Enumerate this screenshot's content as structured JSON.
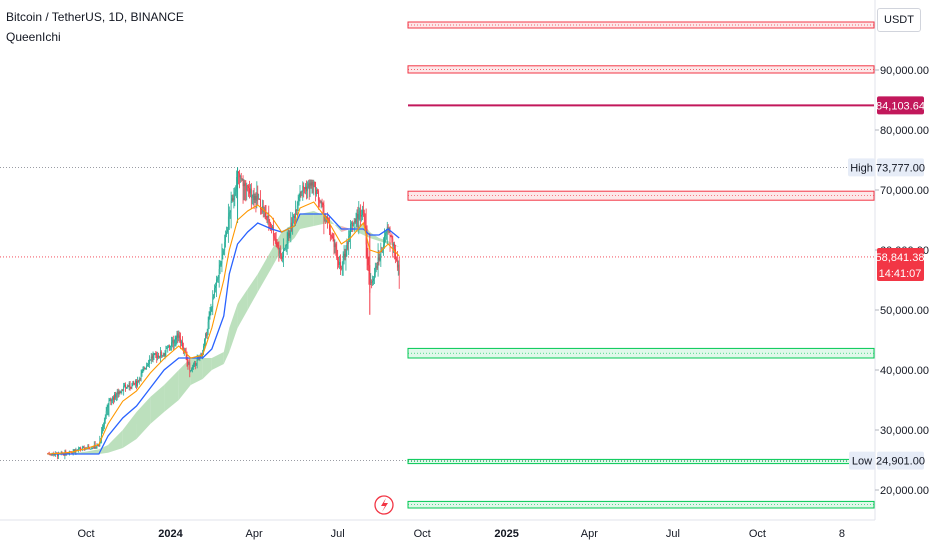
{
  "header": {
    "symbol_title": "Bitcoin / TetherUS, 1D, BINANCE",
    "indicator_name": "QueenIchi"
  },
  "currency_button": "USDT",
  "price_axis": {
    "ticks": [
      {
        "value": 90000,
        "label": "90,000.00"
      },
      {
        "value": 80000,
        "label": "80,000.00"
      },
      {
        "value": 70000,
        "label": "70,000.00"
      },
      {
        "value": 60000,
        "label": "60,000.00"
      },
      {
        "value": 50000,
        "label": "50,000.00"
      },
      {
        "value": 40000,
        "label": "40,000.00"
      },
      {
        "value": 30000,
        "label": "30,000.00"
      },
      {
        "value": 20000,
        "label": "20,000.00"
      }
    ]
  },
  "time_axis": {
    "ticks": [
      "Oct",
      "2024",
      "Apr",
      "Jul",
      "Oct",
      "2025",
      "Apr",
      "Jul",
      "Oct",
      "8"
    ]
  },
  "markers": {
    "high": {
      "tag": "High",
      "label": "73,777.00",
      "value": 73777
    },
    "low": {
      "tag": "Low",
      "label": "24,901.00",
      "value": 24901
    },
    "current": {
      "label": "58,841.38",
      "countdown": "14:41:07",
      "value": 58841.38
    },
    "target": {
      "label": "84,103.64",
      "value": 84103.64
    }
  },
  "colors": {
    "red": "#f23645",
    "dark_red": "#c2185b",
    "green": "#22ab94",
    "green_zone": "#00c853",
    "blue": "#2962ff",
    "orange": "#ff9800",
    "kumo_bull": "#a5d6a7",
    "kumo_bear": "#ef9a9a",
    "axis_text": "#131722"
  },
  "chart_data": {
    "type": "candlestick",
    "symbol": "Bitcoin / TetherUS",
    "interval": "1D",
    "exchange": "BINANCE",
    "ylim": [
      15000,
      99000
    ],
    "log_scale": false,
    "resistance_zones": [
      [
        97000,
        98000
      ],
      [
        89500,
        90700
      ],
      [
        68300,
        69800
      ]
    ],
    "support_zones": [
      [
        42000,
        43600
      ],
      [
        24400,
        25100
      ],
      [
        17000,
        18100
      ]
    ],
    "target_line": 84103.64,
    "high_line": 73777,
    "low_line": 24901,
    "current_line": 58841.38,
    "price_series": {
      "name": "",
      "x": [
        "2023-08-20",
        "2023-09-01",
        "2023-09-15",
        "2023-10-01",
        "2023-10-15",
        "2023-10-25",
        "2023-11-10",
        "2023-11-25",
        "2023-12-10",
        "2023-12-25",
        "2024-01-10",
        "2024-01-23",
        "2024-02-05",
        "2024-02-15",
        "2024-02-28",
        "2024-03-05",
        "2024-03-14",
        "2024-03-25",
        "2024-04-05",
        "2024-04-20",
        "2024-05-01",
        "2024-05-15",
        "2024-05-21",
        "2024-06-05",
        "2024-06-20",
        "2024-07-05",
        "2024-07-15",
        "2024-07-29",
        "2024-08-05",
        "2024-08-15",
        "2024-08-25",
        "2024-09-06"
      ],
      "close": [
        26100,
        25900,
        26500,
        27000,
        27300,
        34500,
        37000,
        37800,
        42000,
        42800,
        46000,
        39800,
        43000,
        51000,
        60000,
        66000,
        72500,
        70000,
        68500,
        64000,
        58500,
        66000,
        70000,
        71000,
        64500,
        56500,
        64000,
        67000,
        54000,
        58500,
        64000,
        56500
      ],
      "high": [
        26800,
        26400,
        27000,
        27500,
        28500,
        35200,
        37800,
        38500,
        44200,
        44000,
        47500,
        41500,
        43500,
        52500,
        63000,
        69000,
        73777,
        71500,
        72500,
        66500,
        63500,
        67500,
        71900,
        71700,
        67000,
        60000,
        65000,
        70000,
        62800,
        61800,
        65000,
        58800
      ],
      "low": [
        25500,
        25100,
        24901,
        26700,
        26900,
        29800,
        35500,
        36800,
        40600,
        41000,
        40000,
        38500,
        41800,
        48500,
        57000,
        59000,
        64500,
        61000,
        65000,
        59700,
        56500,
        60500,
        66300,
        66000,
        60500,
        53500,
        56000,
        61500,
        49200,
        56100,
        58000,
        52550
      ]
    },
    "ichimoku": {
      "tenkan_series": [
        26000,
        26100,
        26300,
        26900,
        27600,
        31000,
        34800,
        36500,
        39500,
        41900,
        44000,
        42000,
        42500,
        47000,
        55000,
        60000,
        65000,
        66500,
        67500,
        65500,
        63000,
        64000,
        67000,
        68000,
        65000,
        61000,
        62000,
        64500,
        60000,
        59500,
        61000,
        59000
      ],
      "kijun_series": [
        26000,
        26000,
        26000,
        26000,
        26000,
        29000,
        32000,
        34000,
        37000,
        40000,
        42000,
        42000,
        42000,
        43500,
        49000,
        56000,
        61000,
        63000,
        64500,
        63500,
        63000,
        64000,
        66000,
        66000,
        66000,
        63500,
        63500,
        63500,
        62500,
        62500,
        63500,
        62000
      ],
      "senkou_span_a": [
        26000,
        26000,
        26100,
        26400,
        26800,
        27500,
        30000,
        33000,
        35500,
        37500,
        40000,
        42000,
        42000,
        42000,
        43000,
        47000,
        51000,
        53500,
        56000,
        60000,
        63000,
        64500,
        66000,
        66500,
        65500,
        63000,
        63500,
        64500,
        63000,
        62000,
        61500,
        60500
      ],
      "senkou_span_b": [
        26000,
        26000,
        26000,
        26000,
        26000,
        26200,
        27000,
        28500,
        31000,
        33000,
        35000,
        37500,
        38500,
        40000,
        41000,
        43000,
        47000,
        50000,
        53000,
        57000,
        60000,
        62000,
        63500,
        64000,
        64500,
        64000,
        63500,
        62500,
        62000,
        61500,
        61000,
        60500
      ]
    }
  }
}
